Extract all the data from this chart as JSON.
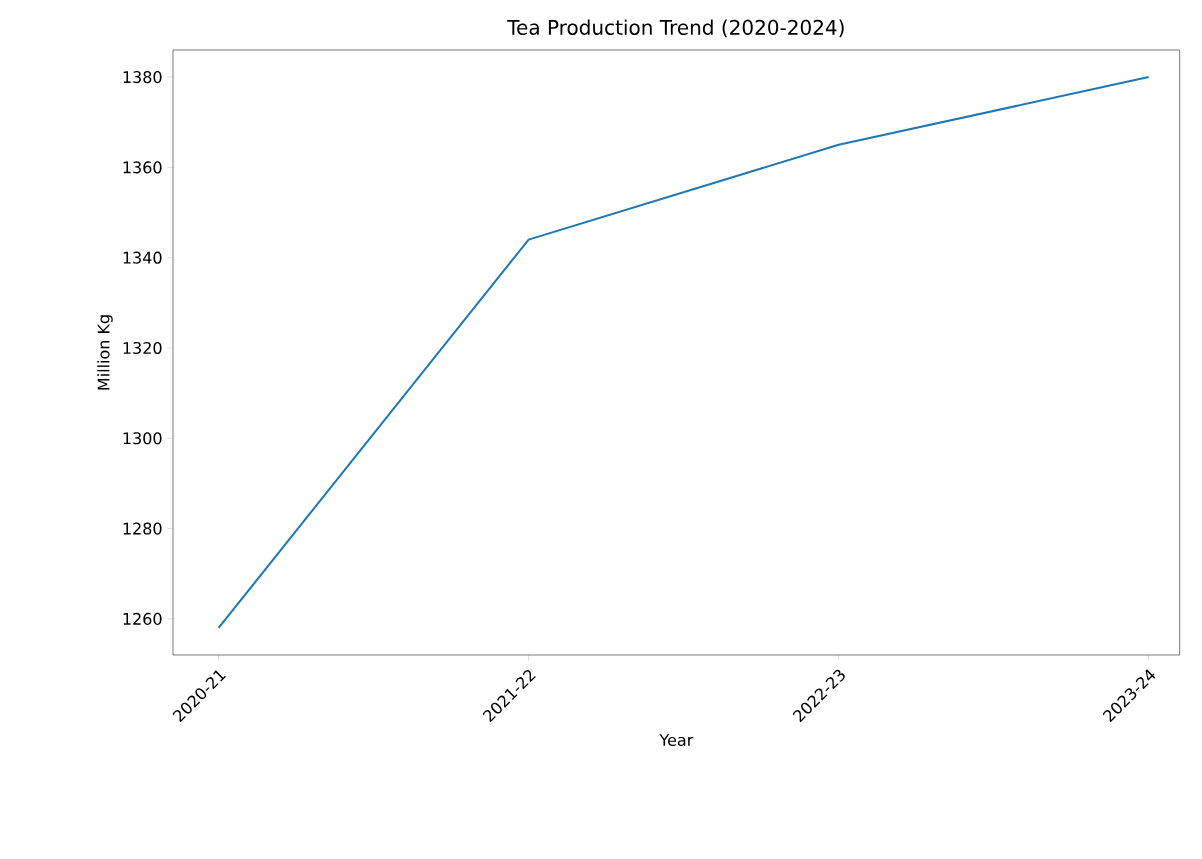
{
  "chart_data": {
    "type": "line",
    "title": "Tea Production Trend (2020-2024)",
    "xlabel": "Year",
    "ylabel": "Million Kg",
    "categories": [
      "2020-21",
      "2021-22",
      "2022-23",
      "2023-24"
    ],
    "values": [
      1258,
      1344,
      1365,
      1380
    ],
    "color": "#1f77b4",
    "ylim": [
      1252,
      1386
    ],
    "yticks": [
      1260,
      1280,
      1300,
      1320,
      1340,
      1360,
      1380
    ]
  }
}
